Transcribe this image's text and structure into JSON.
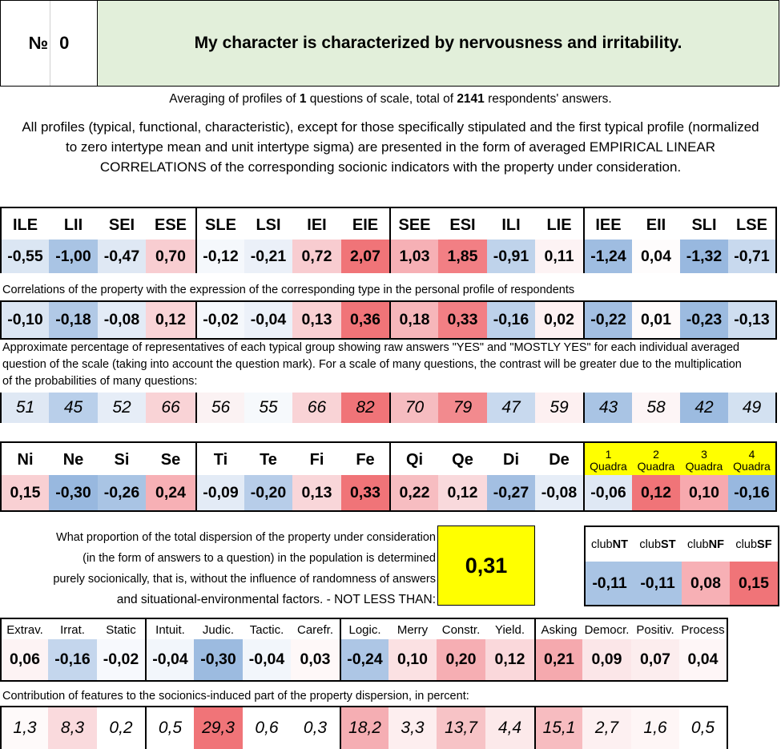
{
  "header": {
    "number_label": "№",
    "number": "0",
    "title": "My character is characterized by nervousness and irritability."
  },
  "averaging": {
    "prefix": "Averaging of profiles of ",
    "questions": "1",
    "middle": " questions of scale, total of ",
    "respondents": "2141",
    "suffix": " respondents' answers."
  },
  "note": "All profiles (typical, functional, characteristic), except for those specifically stipulated and the first typical profile (normalized to zero intertype mean and unit intertype sigma) are presented in the form of averaged EMPIRICAL LINEAR CORRELATIONS of the corresponding socionic indicators with the property under consideration.",
  "types": {
    "headers": [
      "ILE",
      "LII",
      "SEI",
      "ESE",
      "SLE",
      "LSI",
      "IEI",
      "EIE",
      "SEE",
      "ESI",
      "ILI",
      "LIE",
      "IEE",
      "EII",
      "SLI",
      "LSE"
    ],
    "profile": [
      "-0,55",
      "-1,00",
      "-0,47",
      "0,70",
      "-0,12",
      "-0,21",
      "0,72",
      "2,07",
      "1,03",
      "1,85",
      "-0,91",
      "0,11",
      "-1,24",
      "0,04",
      "-1,32",
      "-0,71"
    ],
    "profile_colors": [
      "#dbe6f3",
      "#a9c4e4",
      "#dfe8f4",
      "#f8cdd1",
      "#f5f8fc",
      "#ebf0f8",
      "#f8ccd0",
      "#f07478",
      "#f6b0b5",
      "#f27f84",
      "#bfd3eb",
      "#fdf3f4",
      "#9fbde1",
      "#fefcfc",
      "#98b8df",
      "#c8d9ee"
    ],
    "corr_caption": "Correlations of the property with the expression of the corresponding type in the personal profile of respondents",
    "corr": [
      "-0,10",
      "-0,18",
      "-0,08",
      "0,12",
      "-0,02",
      "-0,04",
      "0,13",
      "0,36",
      "0,18",
      "0,33",
      "-0,16",
      "0,02",
      "-0,22",
      "0,01",
      "-0,23",
      "-0,13"
    ],
    "corr_colors": [
      "#dbe6f3",
      "#b1c9e6",
      "#e3ebf6",
      "#f9d4d7",
      "#f5f8fc",
      "#ecf1f9",
      "#f9d0d3",
      "#f07478",
      "#f6b6ba",
      "#f27f84",
      "#bdd1ea",
      "#fdf1f2",
      "#a3bfe2",
      "#fefafa",
      "#9cbbe0",
      "#cfdef0"
    ],
    "pct_caption": "Approximate percentage of representatives of each typical group showing raw answers \"YES\" and \"MOSTLY YES\" for each individual averaged question of the scale (taking into account the question mark). For a scale of many questions, the contrast will be greater due to the multiplication of the probabilities of many questions:",
    "pct": [
      "51",
      "45",
      "52",
      "66",
      "56",
      "55",
      "66",
      "82",
      "70",
      "79",
      "47",
      "59",
      "43",
      "58",
      "42",
      "49"
    ],
    "pct_colors": [
      "#dfe8f4",
      "#b9cfea",
      "#e6edf7",
      "#f9d3d6",
      "#fbf2f3",
      "#f6f9fc",
      "#f9d3d6",
      "#f07478",
      "#f6bcc0",
      "#f28a8e",
      "#c8d9ee",
      "#fdf0f1",
      "#a9c4e4",
      "#fdf5f6",
      "#9cbbe0",
      "#d3e1f1"
    ]
  },
  "functions": {
    "headers": [
      "Ni",
      "Ne",
      "Si",
      "Se",
      "Ti",
      "Te",
      "Fi",
      "Fe",
      "Qi",
      "Qe",
      "Di",
      "De"
    ],
    "values": [
      "0,15",
      "-0,30",
      "-0,26",
      "0,24",
      "-0,09",
      "-0,20",
      "0,13",
      "0,33",
      "0,22",
      "0,12",
      "-0,27",
      "-0,08"
    ],
    "colors": [
      "#f9d0d3",
      "#98b8df",
      "#a9c4e4",
      "#f7b0b5",
      "#e3ebf6",
      "#b7cde9",
      "#f9d6d9",
      "#f07478",
      "#f7bdc1",
      "#f9d9dc",
      "#a3bfe2",
      "#e6edf7"
    ],
    "quadra_headers": [
      {
        "n": "1",
        "label": "Quadra"
      },
      {
        "n": "2",
        "label": "Quadra"
      },
      {
        "n": "3",
        "label": "Quadra"
      },
      {
        "n": "4",
        "label": "Quadra"
      }
    ],
    "quadra_values": [
      "-0,06",
      "0,12",
      "0,10",
      "-0,16"
    ],
    "quadra_colors": [
      "#dfe8f4",
      "#f07478",
      "#f7a9ae",
      "#98b8df"
    ]
  },
  "dispersion": {
    "lines": [
      "What proportion of the total dispersion of the property under consideration",
      "(in the form of answers to a question) in the population is determined",
      "purely socionically, that is, without the influence of randomness of answers",
      "and situational-environmental factors. - NOT LESS THAN:"
    ],
    "value": "0,31"
  },
  "clubs": {
    "headers": [
      {
        "pre": "club",
        "bold": "NT"
      },
      {
        "pre": "club",
        "bold": "ST"
      },
      {
        "pre": "club",
        "bold": "NF"
      },
      {
        "pre": "club",
        "bold": "SF"
      }
    ],
    "values": [
      "-0,11",
      "-0,11",
      "0,08",
      "0,15"
    ],
    "colors": [
      "#a9c4e4",
      "#a9c4e4",
      "#f7b0b5",
      "#f07478"
    ]
  },
  "traits": {
    "headers": [
      "Extrav.",
      "Irrat.",
      "Static",
      "Intuit.",
      "Judic.",
      "Tactic.",
      "Carefr.",
      "Logic.",
      "Merry",
      "Constr.",
      "Yield.",
      "Asking",
      "Democr.",
      "Positiv.",
      "Process"
    ],
    "values": [
      "0,06",
      "-0,16",
      "-0,02",
      "-0,04",
      "-0,30",
      "-0,04",
      "0,03",
      "-0,24",
      "0,10",
      "0,20",
      "0,12",
      "0,21",
      "0,09",
      "0,07",
      "0,04"
    ],
    "colors": [
      "#fdf3f4",
      "#c4d6ed",
      "#f7f9fd",
      "#f2f6fb",
      "#9cbbe0",
      "#f2f6fb",
      "#fef8f8",
      "#adc6e5",
      "#fbe1e3",
      "#f6aeb3",
      "#fad8db",
      "#f5a9ae",
      "#fbe6e8",
      "#fcedee",
      "#fef6f7"
    ],
    "contrib_caption": "Contribution of features to the socionics-induced part of the property dispersion, in percent:",
    "contrib": [
      "1,3",
      "8,3",
      "0,2",
      "0,5",
      "29,3",
      "0,6",
      "0,3",
      "18,2",
      "3,3",
      "13,7",
      "4,4",
      "15,1",
      "2,7",
      "1,6",
      "0,5"
    ],
    "contrib_colors": [
      "#fefafa",
      "#fadadd",
      "#ffffff",
      "#ffffff",
      "#f07478",
      "#ffffff",
      "#ffffff",
      "#f5aeb3",
      "#fdeeef",
      "#f7c3c6",
      "#fce9ea",
      "#f7bcc0",
      "#fdf0f1",
      "#fef6f6",
      "#ffffff"
    ]
  }
}
